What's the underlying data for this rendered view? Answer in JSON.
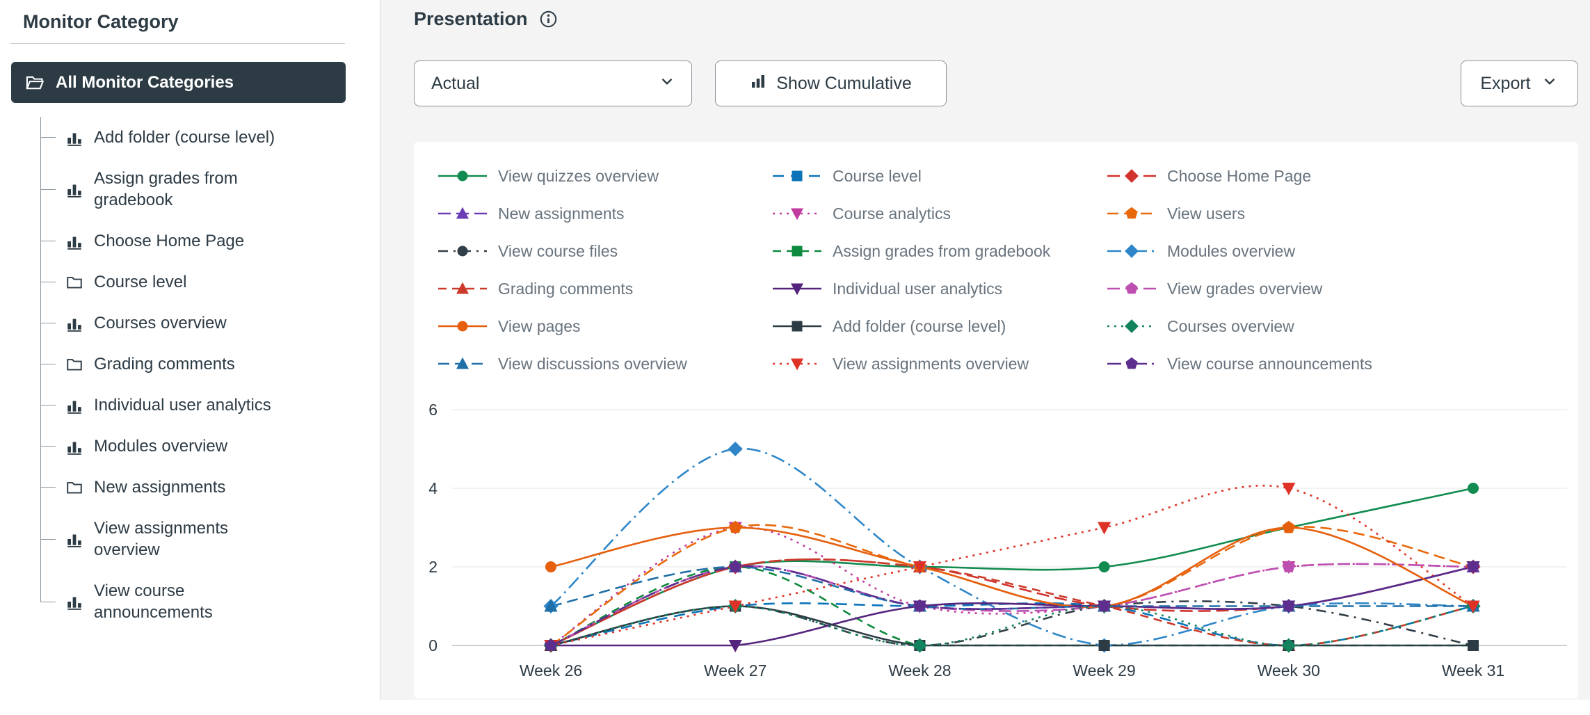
{
  "sidebar": {
    "title": "Monitor Category",
    "selected": {
      "label": "All Monitor Categories",
      "icon": "folder-open-icon"
    },
    "items": [
      {
        "label": "Add folder (course level)",
        "icon": "bar-chart"
      },
      {
        "label": "Assign grades from\ngradebook",
        "icon": "bar-chart"
      },
      {
        "label": "Choose Home Page",
        "icon": "bar-chart"
      },
      {
        "label": "Course level",
        "icon": "folder"
      },
      {
        "label": "Courses overview",
        "icon": "bar-chart"
      },
      {
        "label": "Grading comments",
        "icon": "folder"
      },
      {
        "label": "Individual user analytics",
        "icon": "bar-chart"
      },
      {
        "label": "Modules overview",
        "icon": "bar-chart"
      },
      {
        "label": "New assignments",
        "icon": "folder"
      },
      {
        "label": "View assignments\noverview",
        "icon": "bar-chart"
      },
      {
        "label": "View course\nannouncements",
        "icon": "bar-chart"
      }
    ]
  },
  "header": {
    "title": "Presentation",
    "info_icon": "info-icon"
  },
  "controls": {
    "presentation_select_value": "Actual",
    "show_cumulative_label": "Show Cumulative",
    "export_label": "Export"
  },
  "colors": {
    "sidebar_selected_bg": "#2d3b45",
    "text_dark": "#2d3b45",
    "legend_text": "#68737d",
    "gridline": "#e6e6e6",
    "axis_line": "#9aa2aa"
  },
  "chart_data": {
    "type": "line",
    "x": [
      "Week 26",
      "Week 27",
      "Week 28",
      "Week 29",
      "Week 30",
      "Week 31"
    ],
    "ylim": [
      0,
      6
    ],
    "yticks": [
      0,
      2,
      4,
      6
    ],
    "grid": true,
    "legend_position": "top",
    "series": [
      {
        "name": "View quizzes overview",
        "color": "#118B4F",
        "marker": "circle",
        "dash": "",
        "values": [
          0,
          2,
          2,
          2,
          3,
          4
        ]
      },
      {
        "name": "Course level",
        "color": "#0B74B8",
        "marker": "square",
        "dash": "16 10",
        "values": [
          0,
          1,
          1,
          1,
          0,
          1
        ]
      },
      {
        "name": "Choose Home Page",
        "color": "#D0342C",
        "marker": "diamond",
        "dash": "18 8",
        "values": [
          0,
          2,
          2,
          1,
          1,
          2
        ]
      },
      {
        "name": "New assignments",
        "color": "#6A3CB5",
        "marker": "triangle-up",
        "dash": "18 8",
        "values": [
          0,
          2,
          1,
          1,
          1,
          2
        ]
      },
      {
        "name": "Course analytics",
        "color": "#C13A9F",
        "marker": "triangle-down",
        "dash": "3 7",
        "values": [
          0,
          3,
          1,
          1,
          2,
          2
        ]
      },
      {
        "name": "View users",
        "color": "#E8690B",
        "marker": "pentagon",
        "dash": "16 8",
        "values": [
          0,
          3,
          2,
          1,
          3,
          2
        ]
      },
      {
        "name": "View course files",
        "color": "#333F48",
        "marker": "circle",
        "dash": "14 8 3 8",
        "values": [
          0,
          1,
          0,
          1,
          1,
          0
        ]
      },
      {
        "name": "Assign grades from gradebook",
        "color": "#0E8A3E",
        "marker": "square",
        "dash": "12 8",
        "values": [
          0,
          2,
          0,
          0,
          0,
          0
        ]
      },
      {
        "name": "Modules overview",
        "color": "#2E86C8",
        "marker": "diamond",
        "dash": "20 7 3 7",
        "values": [
          1,
          5,
          2,
          0,
          1,
          1
        ]
      },
      {
        "name": "Grading comments",
        "color": "#CC3A2B",
        "marker": "triangle-up",
        "dash": "12 8",
        "values": [
          0,
          2,
          2,
          1,
          0,
          1
        ]
      },
      {
        "name": "Individual user analytics",
        "color": "#55257D",
        "marker": "triangle-down",
        "dash": "",
        "values": [
          0,
          0,
          1,
          1,
          1,
          2
        ]
      },
      {
        "name": "View grades overview",
        "color": "#BD4FB1",
        "marker": "pentagon",
        "dash": "18 8",
        "values": [
          0,
          2,
          1,
          1,
          2,
          2
        ]
      },
      {
        "name": "View pages",
        "color": "#E55F0D",
        "marker": "circle",
        "dash": "",
        "values": [
          2,
          3,
          2,
          1,
          3,
          1
        ]
      },
      {
        "name": "Add folder (course level)",
        "color": "#2D3B45",
        "marker": "square",
        "dash": "",
        "values": [
          0,
          1,
          0,
          0,
          0,
          0
        ]
      },
      {
        "name": "Courses overview",
        "color": "#12835C",
        "marker": "diamond",
        "dash": "3 7",
        "values": [
          0,
          1,
          0,
          1,
          0,
          1
        ]
      },
      {
        "name": "View discussions overview",
        "color": "#1F6FA8",
        "marker": "triangle-up",
        "dash": "16 8",
        "values": [
          1,
          2,
          1,
          1,
          1,
          1
        ]
      },
      {
        "name": "View assignments overview",
        "color": "#DE3226",
        "marker": "triangle-down",
        "dash": "3 7",
        "values": [
          0,
          1,
          2,
          3,
          4,
          1
        ]
      },
      {
        "name": "View course announcements",
        "color": "#5D2E8E",
        "marker": "pentagon",
        "dash": "20 7 3 7",
        "values": [
          0,
          2,
          1,
          1,
          1,
          2
        ]
      }
    ]
  }
}
